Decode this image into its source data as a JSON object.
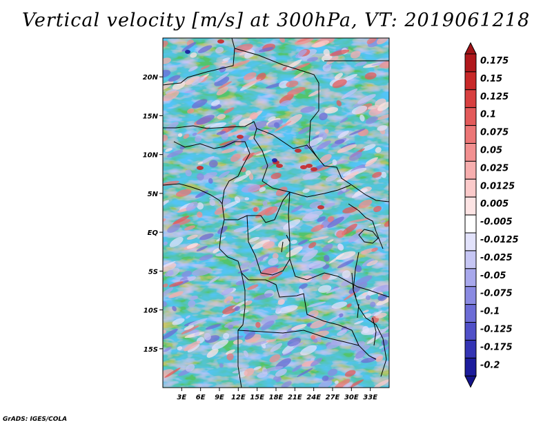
{
  "title": "Vertical velocity [m/s] at 300hPa, VT: 2019061218",
  "credit": "GrADS: IGES/COLA",
  "map": {
    "lon_range": [
      0,
      36
    ],
    "lat_range": [
      -20,
      25
    ],
    "lon_ticks": [
      {
        "value": 3,
        "label": "3E"
      },
      {
        "value": 6,
        "label": "6E"
      },
      {
        "value": 9,
        "label": "9E"
      },
      {
        "value": 12,
        "label": "12E"
      },
      {
        "value": 15,
        "label": "15E"
      },
      {
        "value": 18,
        "label": "18E"
      },
      {
        "value": 21,
        "label": "21E"
      },
      {
        "value": 24,
        "label": "24E"
      },
      {
        "value": 27,
        "label": "27E"
      },
      {
        "value": 30,
        "label": "30E"
      },
      {
        "value": 33,
        "label": "33E"
      }
    ],
    "lat_ticks": [
      {
        "value": 20,
        "label": "20N"
      },
      {
        "value": 15,
        "label": "15N"
      },
      {
        "value": 10,
        "label": "10N"
      },
      {
        "value": 5,
        "label": "5N"
      },
      {
        "value": 0,
        "label": "EQ"
      },
      {
        "value": -5,
        "label": "5S"
      },
      {
        "value": -10,
        "label": "10S"
      },
      {
        "value": -15,
        "label": "15S"
      }
    ]
  },
  "colorbar": {
    "levels": [
      {
        "label": "0.175",
        "color": "#b0181c"
      },
      {
        "label": "0.15",
        "color": "#c82828"
      },
      {
        "label": "0.125",
        "color": "#d84040"
      },
      {
        "label": "0.1",
        "color": "#e35a5a"
      },
      {
        "label": "0.075",
        "color": "#ec7676"
      },
      {
        "label": "0.05",
        "color": "#f29090"
      },
      {
        "label": "0.025",
        "color": "#f7aeae"
      },
      {
        "label": "0.0125",
        "color": "#fbcaca"
      },
      {
        "label": "0.005",
        "color": "#fde4e4"
      },
      {
        "label": "-0.005",
        "color": "#ffffff"
      },
      {
        "label": "-0.0125",
        "color": "#e2e2fb"
      },
      {
        "label": "-0.025",
        "color": "#c6c6f4"
      },
      {
        "label": "-0.05",
        "color": "#a8a8ec"
      },
      {
        "label": "-0.075",
        "color": "#8a8ae2"
      },
      {
        "label": "-0.1",
        "color": "#6c6cd6"
      },
      {
        "label": "-0.125",
        "color": "#5050c8"
      },
      {
        "label": "-0.175",
        "color": "#3434b4"
      },
      {
        "label": "-0.2",
        "color": "#1c1c9c"
      }
    ],
    "top_cap_color": "#a01418",
    "bottom_cap_color": "#14148a"
  }
}
